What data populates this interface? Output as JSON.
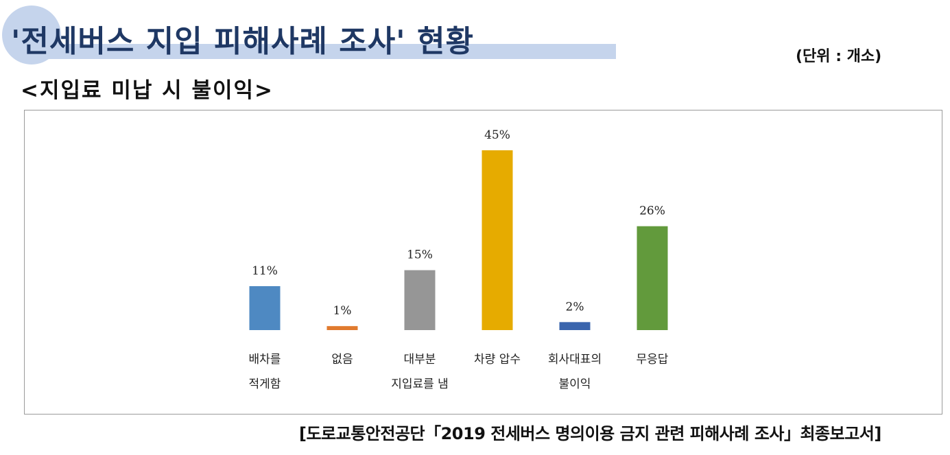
{
  "header": {
    "title": "'전세버스 지입 피해사례 조사' 현황",
    "unit": "(단위 : 개소)",
    "subtitle": "<지입료 미납 시 불이익>"
  },
  "footer": {
    "source": "[도로교통안전공단「2019 전세버스 명의이용 금지 관련 피해사례 조사」최종보고서]"
  },
  "chart_data": {
    "type": "bar",
    "categories": [
      [
        "배차를",
        "적게함"
      ],
      [
        "없음"
      ],
      [
        "대부분",
        "지입료를 냄"
      ],
      [
        "차량 압수"
      ],
      [
        "회사대표의",
        "불이익"
      ],
      [
        "무응답"
      ]
    ],
    "values": [
      11,
      1,
      15,
      45,
      2,
      26
    ],
    "data_labels": [
      "11%",
      "1%",
      "15%",
      "45%",
      "2%",
      "26%"
    ],
    "colors": [
      "#4e89c2",
      "#e07a2e",
      "#969696",
      "#e6ab00",
      "#3a65ad",
      "#629a3c"
    ],
    "ylim": [
      0,
      45
    ],
    "grid": false,
    "legend": "none"
  }
}
